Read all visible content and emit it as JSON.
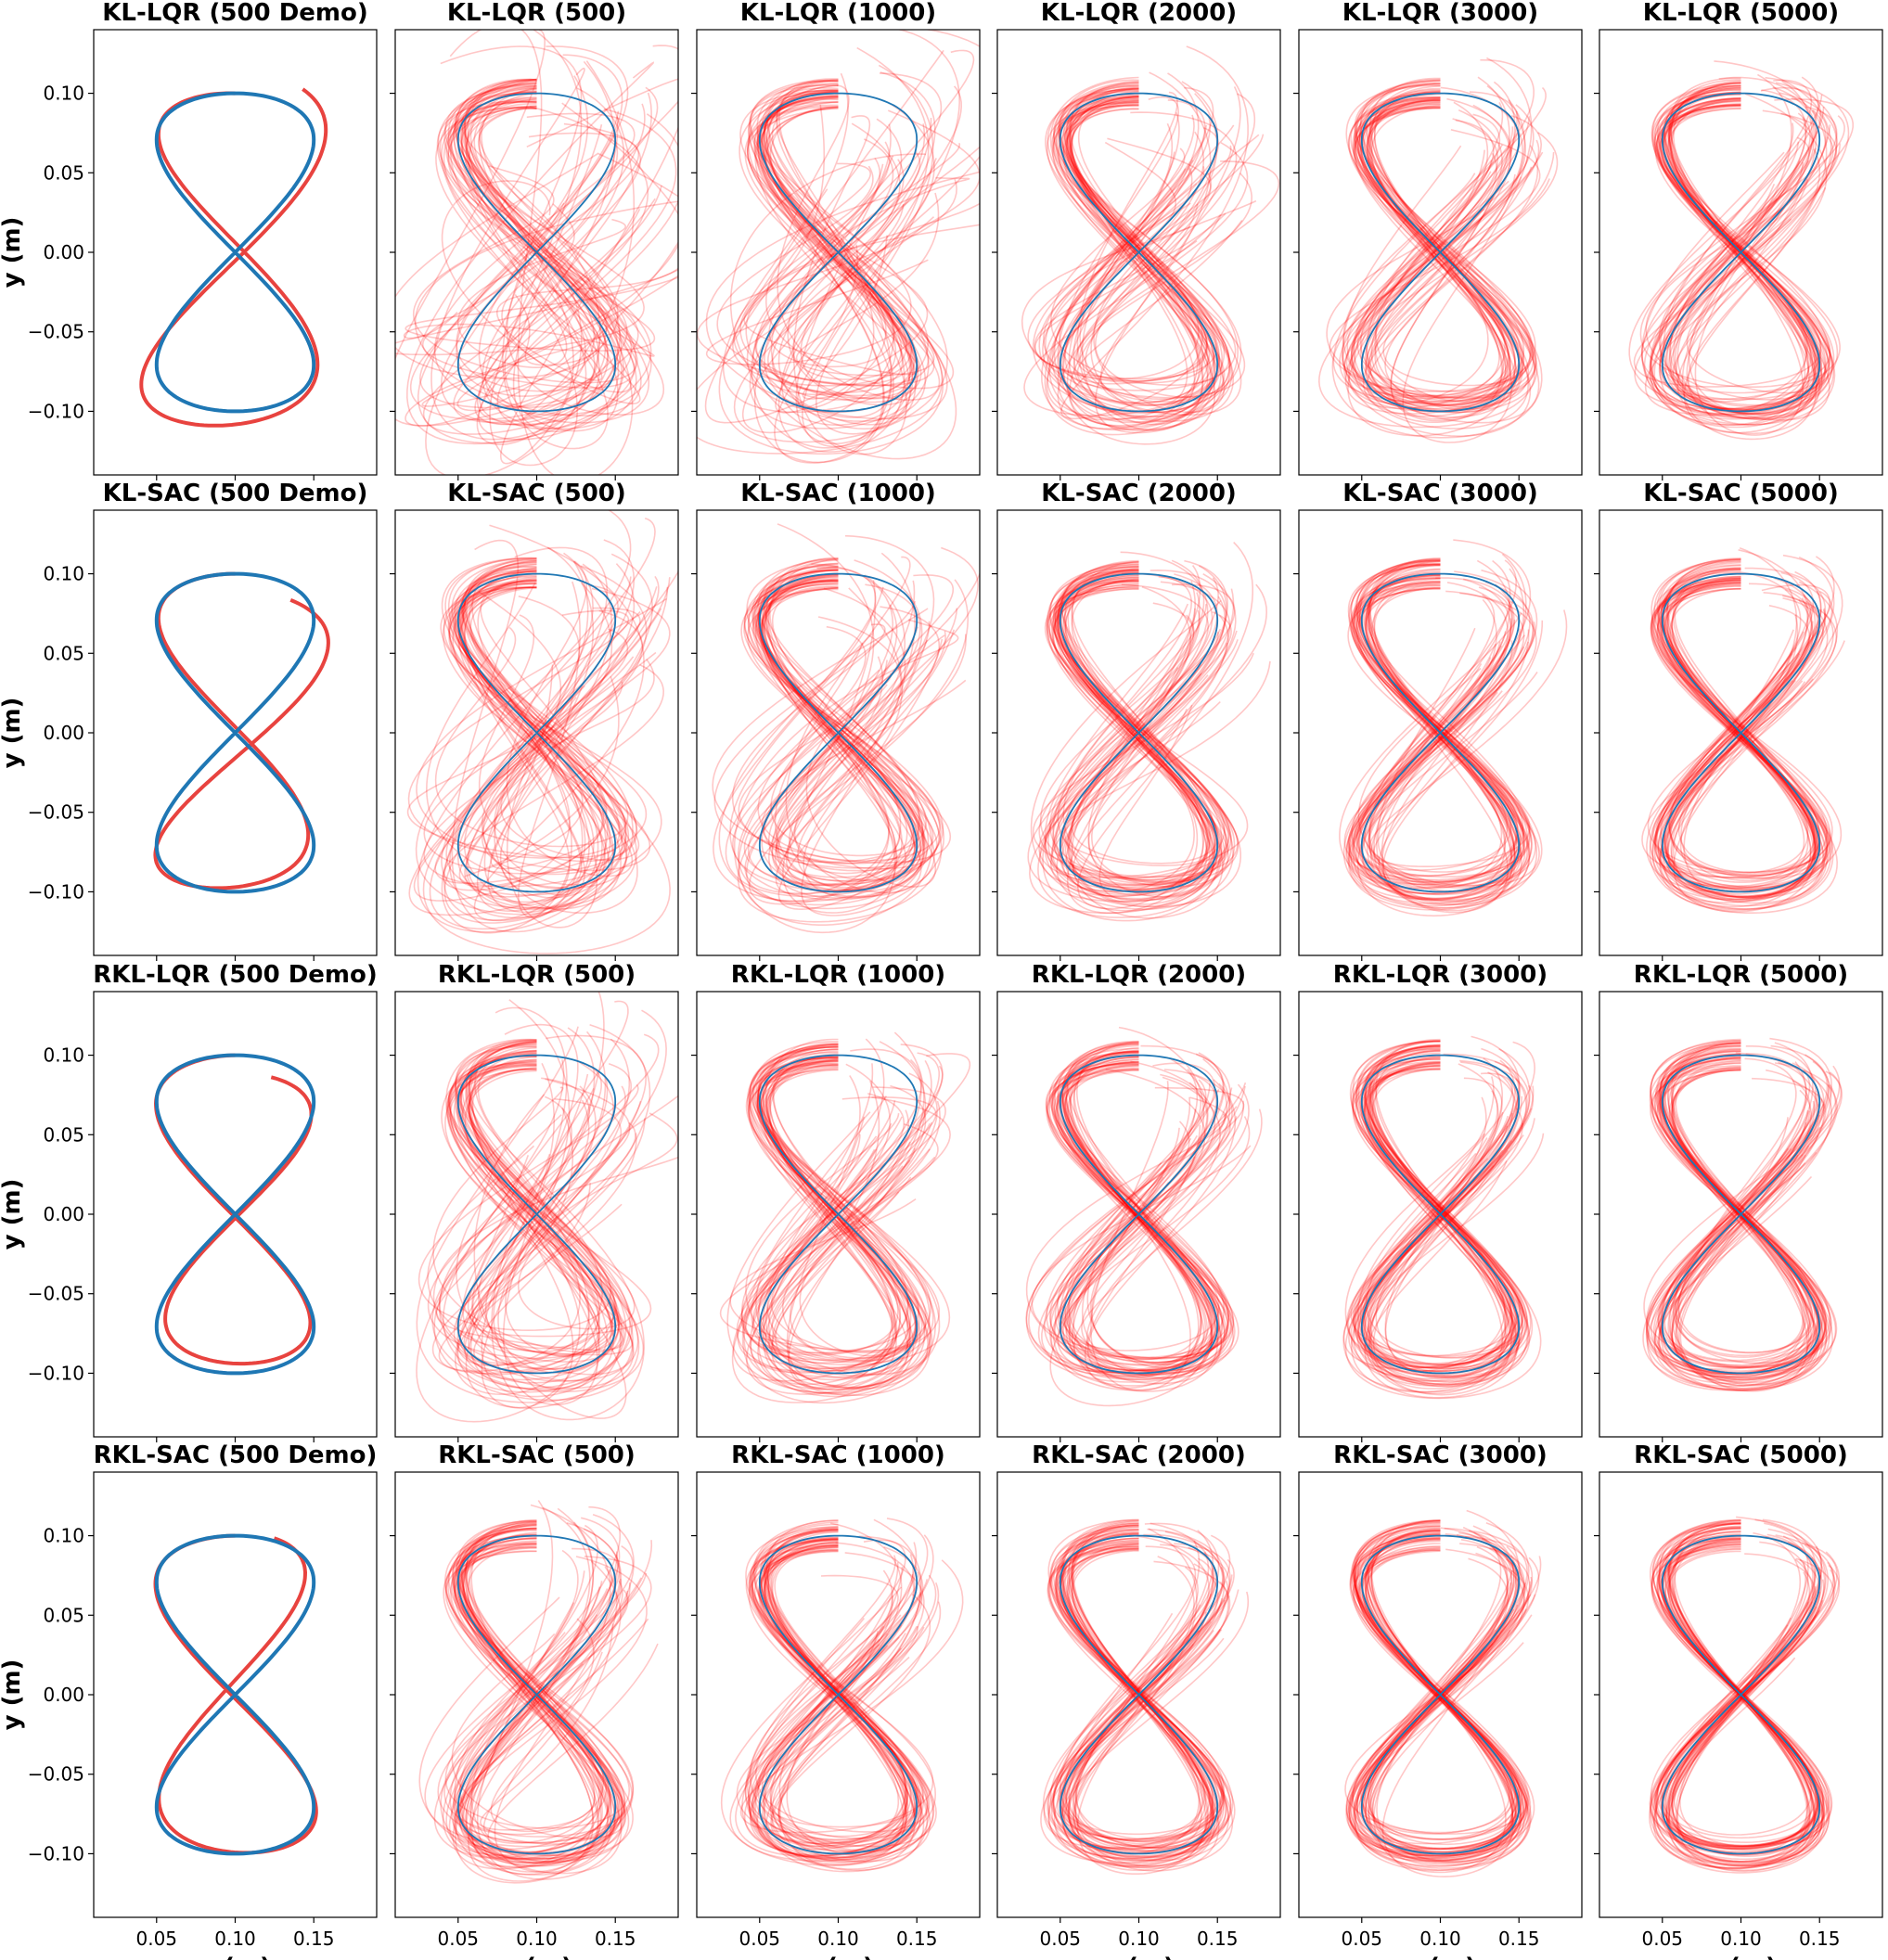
{
  "figure": {
    "colors": {
      "reference": "#1f77b4",
      "rollouts": "#ff0000",
      "demo": "#e8433f"
    }
  },
  "chart_data": [
    {
      "type": "line",
      "title": "KL-LQR (500 Demo)",
      "method": "KL-LQR",
      "n": 500,
      "demo": true,
      "ylabel": "y (m)",
      "xlabel": ""
    },
    {
      "type": "line",
      "title": "KL-LQR (500)",
      "method": "KL-LQR",
      "n": 500,
      "demo": false,
      "ylabel": "",
      "xlabel": ""
    },
    {
      "type": "line",
      "title": "KL-LQR (1000)",
      "method": "KL-LQR",
      "n": 1000,
      "demo": false,
      "ylabel": "",
      "xlabel": ""
    },
    {
      "type": "line",
      "title": "KL-LQR (2000)",
      "method": "KL-LQR",
      "n": 2000,
      "demo": false,
      "ylabel": "",
      "xlabel": ""
    },
    {
      "type": "line",
      "title": "KL-LQR (3000)",
      "method": "KL-LQR",
      "n": 3000,
      "demo": false,
      "ylabel": "",
      "xlabel": ""
    },
    {
      "type": "line",
      "title": "KL-LQR (5000)",
      "method": "KL-LQR",
      "n": 5000,
      "demo": false,
      "ylabel": "",
      "xlabel": ""
    },
    {
      "type": "line",
      "title": "KL-SAC (500 Demo)",
      "method": "KL-SAC",
      "n": 500,
      "demo": true,
      "ylabel": "y (m)",
      "xlabel": ""
    },
    {
      "type": "line",
      "title": "KL-SAC (500)",
      "method": "KL-SAC",
      "n": 500,
      "demo": false,
      "ylabel": "",
      "xlabel": ""
    },
    {
      "type": "line",
      "title": "KL-SAC (1000)",
      "method": "KL-SAC",
      "n": 1000,
      "demo": false,
      "ylabel": "",
      "xlabel": ""
    },
    {
      "type": "line",
      "title": "KL-SAC (2000)",
      "method": "KL-SAC",
      "n": 2000,
      "demo": false,
      "ylabel": "",
      "xlabel": ""
    },
    {
      "type": "line",
      "title": "KL-SAC (3000)",
      "method": "KL-SAC",
      "n": 3000,
      "demo": false,
      "ylabel": "",
      "xlabel": ""
    },
    {
      "type": "line",
      "title": "KL-SAC (5000)",
      "method": "KL-SAC",
      "n": 5000,
      "demo": false,
      "ylabel": "",
      "xlabel": ""
    },
    {
      "type": "line",
      "title": "RKL-LQR (500 Demo)",
      "method": "RKL-LQR",
      "n": 500,
      "demo": true,
      "ylabel": "y (m)",
      "xlabel": ""
    },
    {
      "type": "line",
      "title": "RKL-LQR (500)",
      "method": "RKL-LQR",
      "n": 500,
      "demo": false,
      "ylabel": "",
      "xlabel": ""
    },
    {
      "type": "line",
      "title": "RKL-LQR (1000)",
      "method": "RKL-LQR",
      "n": 1000,
      "demo": false,
      "ylabel": "",
      "xlabel": ""
    },
    {
      "type": "line",
      "title": "RKL-LQR (2000)",
      "method": "RKL-LQR",
      "n": 2000,
      "demo": false,
      "ylabel": "",
      "xlabel": ""
    },
    {
      "type": "line",
      "title": "RKL-LQR (3000)",
      "method": "RKL-LQR",
      "n": 3000,
      "demo": false,
      "ylabel": "",
      "xlabel": ""
    },
    {
      "type": "line",
      "title": "RKL-LQR (5000)",
      "method": "RKL-LQR",
      "n": 5000,
      "demo": false,
      "ylabel": "",
      "xlabel": ""
    },
    {
      "type": "line",
      "title": "RKL-SAC (500 Demo)",
      "method": "RKL-SAC",
      "n": 500,
      "demo": true,
      "ylabel": "y (m)",
      "xlabel": "x (m)"
    },
    {
      "type": "line",
      "title": "RKL-SAC (500)",
      "method": "RKL-SAC",
      "n": 500,
      "demo": false,
      "ylabel": "",
      "xlabel": "x (m)"
    },
    {
      "type": "line",
      "title": "RKL-SAC (1000)",
      "method": "RKL-SAC",
      "n": 1000,
      "demo": false,
      "ylabel": "",
      "xlabel": "x (m)"
    },
    {
      "type": "line",
      "title": "RKL-SAC (2000)",
      "method": "RKL-SAC",
      "n": 2000,
      "demo": false,
      "ylabel": "",
      "xlabel": "x (m)"
    },
    {
      "type": "line",
      "title": "RKL-SAC (3000)",
      "method": "RKL-SAC",
      "n": 3000,
      "demo": false,
      "ylabel": "",
      "xlabel": "x (m)"
    },
    {
      "type": "line",
      "title": "RKL-SAC (5000)",
      "method": "RKL-SAC",
      "n": 5000,
      "demo": false,
      "ylabel": "",
      "xlabel": "x (m)"
    }
  ],
  "axes": {
    "xlim": [
      0.01,
      0.19
    ],
    "ylim": [
      -0.14,
      0.14
    ],
    "xticks": [
      0.05,
      0.1,
      0.15
    ],
    "xtick_labels": [
      "0.05",
      "0.10",
      "0.15"
    ],
    "yticks": [
      0.1,
      0.05,
      0.0,
      -0.05,
      -0.1
    ],
    "ytick_labels": [
      "0.10",
      "0.05",
      "0.00",
      "−0.05",
      "−0.10"
    ],
    "grid": false
  },
  "reference_curve": {
    "shape": "figure-eight",
    "center": [
      0.1,
      0.0
    ],
    "x_amplitude": 0.05,
    "y_amplitude": 0.1
  }
}
